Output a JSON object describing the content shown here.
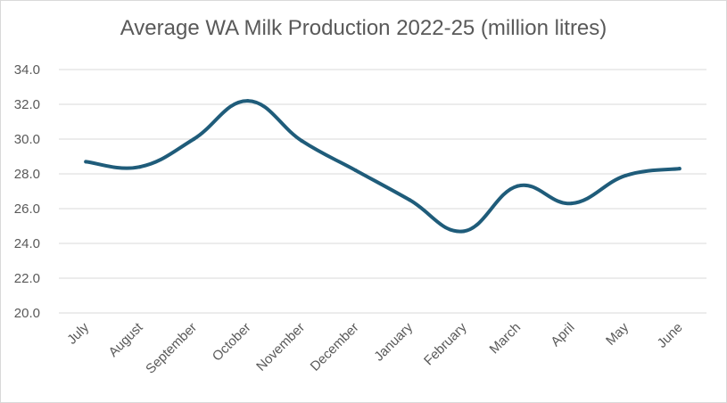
{
  "chart_data": {
    "type": "line",
    "title": "Average WA Milk Production 2022-25 (million litres)",
    "xlabel": "",
    "ylabel": "",
    "categories": [
      "July",
      "August",
      "September",
      "October",
      "November",
      "December",
      "January",
      "February",
      "March",
      "April",
      "May",
      "June"
    ],
    "series": [
      {
        "values": [
          28.7,
          28.4,
          30.0,
          32.2,
          29.9,
          28.2,
          26.5,
          24.7,
          27.3,
          26.3,
          27.9,
          28.3
        ],
        "color": "#1f5c7a"
      }
    ],
    "ylim": [
      20.0,
      34.0
    ],
    "yticks": [
      "20.0",
      "22.0",
      "24.0",
      "26.0",
      "28.0",
      "30.0",
      "32.0",
      "34.0"
    ],
    "smooth": true,
    "grid": true,
    "legend": "none"
  }
}
